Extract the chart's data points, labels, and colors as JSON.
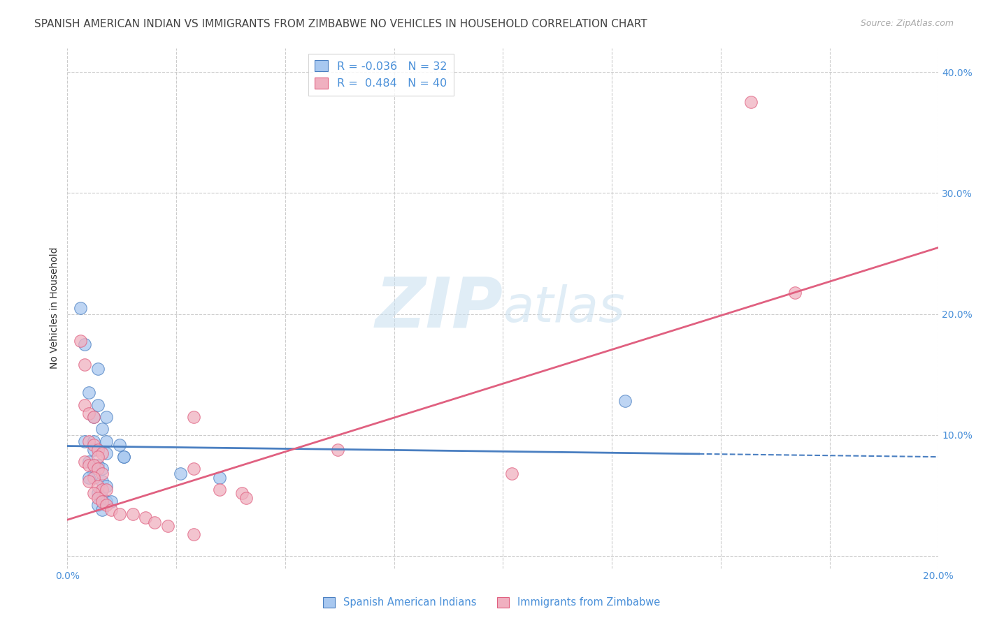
{
  "title": "SPANISH AMERICAN INDIAN VS IMMIGRANTS FROM ZIMBABWE NO VEHICLES IN HOUSEHOLD CORRELATION CHART",
  "source": "Source: ZipAtlas.com",
  "tick_color": "#4a90d9",
  "ylabel": "No Vehicles in Household",
  "xlim": [
    0.0,
    0.2
  ],
  "ylim": [
    -0.01,
    0.42
  ],
  "xticks": [
    0.0,
    0.025,
    0.05,
    0.075,
    0.1,
    0.125,
    0.15,
    0.175,
    0.2
  ],
  "xtick_labels": [
    "0.0%",
    "",
    "",
    "",
    "",
    "",
    "",
    "",
    "20.0%"
  ],
  "yticks": [
    0.0,
    0.1,
    0.2,
    0.3,
    0.4
  ],
  "ytick_labels": [
    "",
    "10.0%",
    "20.0%",
    "30.0%",
    "40.0%"
  ],
  "grid_color": "#cccccc",
  "background_color": "#ffffff",
  "legend_R1": "-0.036",
  "legend_N1": "32",
  "legend_R2": "0.484",
  "legend_N2": "40",
  "color_blue": "#a8c8f0",
  "color_pink": "#f0b0c0",
  "line_color_blue": "#4a7fc1",
  "line_color_pink": "#e06080",
  "blue_line_solid_end": 0.145,
  "blue_line_y0": 0.091,
  "blue_line_y1": 0.082,
  "pink_line_y0": 0.03,
  "pink_line_y1": 0.255,
  "scatter_blue": [
    [
      0.003,
      0.205
    ],
    [
      0.004,
      0.175
    ],
    [
      0.007,
      0.155
    ],
    [
      0.005,
      0.135
    ],
    [
      0.007,
      0.125
    ],
    [
      0.006,
      0.115
    ],
    [
      0.009,
      0.115
    ],
    [
      0.008,
      0.105
    ],
    [
      0.004,
      0.095
    ],
    [
      0.006,
      0.095
    ],
    [
      0.009,
      0.095
    ],
    [
      0.012,
      0.092
    ],
    [
      0.006,
      0.088
    ],
    [
      0.009,
      0.085
    ],
    [
      0.013,
      0.082
    ],
    [
      0.013,
      0.082
    ],
    [
      0.005,
      0.078
    ],
    [
      0.007,
      0.075
    ],
    [
      0.008,
      0.072
    ],
    [
      0.006,
      0.068
    ],
    [
      0.005,
      0.065
    ],
    [
      0.008,
      0.062
    ],
    [
      0.009,
      0.058
    ],
    [
      0.007,
      0.052
    ],
    [
      0.008,
      0.048
    ],
    [
      0.009,
      0.045
    ],
    [
      0.01,
      0.045
    ],
    [
      0.007,
      0.042
    ],
    [
      0.008,
      0.038
    ],
    [
      0.026,
      0.068
    ],
    [
      0.035,
      0.065
    ],
    [
      0.128,
      0.128
    ]
  ],
  "scatter_pink": [
    [
      0.003,
      0.178
    ],
    [
      0.004,
      0.158
    ],
    [
      0.004,
      0.125
    ],
    [
      0.005,
      0.118
    ],
    [
      0.006,
      0.115
    ],
    [
      0.005,
      0.095
    ],
    [
      0.006,
      0.092
    ],
    [
      0.007,
      0.088
    ],
    [
      0.008,
      0.085
    ],
    [
      0.007,
      0.082
    ],
    [
      0.004,
      0.078
    ],
    [
      0.005,
      0.075
    ],
    [
      0.006,
      0.075
    ],
    [
      0.007,
      0.072
    ],
    [
      0.008,
      0.068
    ],
    [
      0.006,
      0.065
    ],
    [
      0.005,
      0.062
    ],
    [
      0.007,
      0.058
    ],
    [
      0.008,
      0.055
    ],
    [
      0.009,
      0.055
    ],
    [
      0.006,
      0.052
    ],
    [
      0.007,
      0.048
    ],
    [
      0.008,
      0.045
    ],
    [
      0.009,
      0.042
    ],
    [
      0.01,
      0.038
    ],
    [
      0.012,
      0.035
    ],
    [
      0.015,
      0.035
    ],
    [
      0.018,
      0.032
    ],
    [
      0.02,
      0.028
    ],
    [
      0.023,
      0.025
    ],
    [
      0.029,
      0.018
    ],
    [
      0.029,
      0.072
    ],
    [
      0.029,
      0.115
    ],
    [
      0.035,
      0.055
    ],
    [
      0.04,
      0.052
    ],
    [
      0.041,
      0.048
    ],
    [
      0.062,
      0.088
    ],
    [
      0.102,
      0.068
    ],
    [
      0.157,
      0.375
    ],
    [
      0.167,
      0.218
    ]
  ],
  "title_fontsize": 11,
  "source_fontsize": 9,
  "axis_label_fontsize": 10,
  "tick_fontsize": 10,
  "legend_fontsize": 11.5,
  "marker_size": 160,
  "marker_aspect": 0.55
}
